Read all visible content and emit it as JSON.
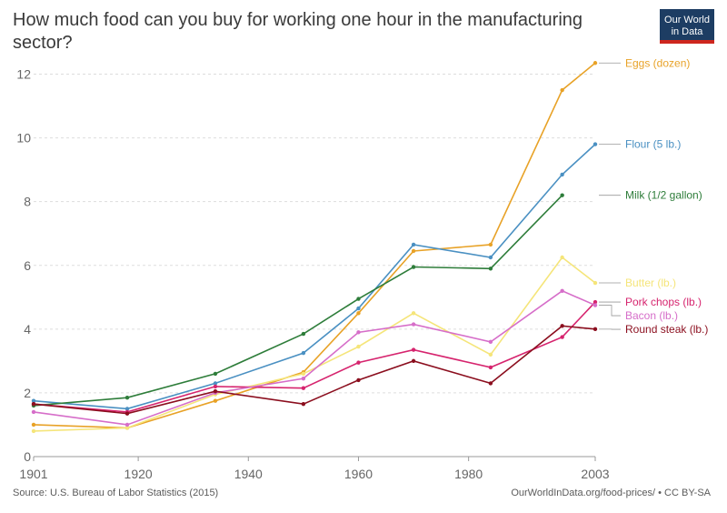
{
  "header": {
    "title": "How much food can you buy for working one hour in the manufacturing sector?",
    "logo_line1": "Our World",
    "logo_line2": "in Data"
  },
  "footer": {
    "source": "Source: U.S. Bureau of Labor Statistics (2015)",
    "credit": "OurWorldInData.org/food-prices/ • CC BY-SA"
  },
  "chart_data": {
    "type": "line",
    "title": "How much food can you buy for working one hour in the manufacturing sector?",
    "xlabel": "",
    "ylabel": "",
    "xlim": [
      1901,
      2003
    ],
    "ylim": [
      0,
      12.5
    ],
    "x_ticks": [
      1901,
      1920,
      1940,
      1960,
      1980,
      2003
    ],
    "y_ticks": [
      0,
      2,
      4,
      6,
      8,
      10,
      12
    ],
    "grid": "horizontal dashed",
    "legend": "right, labels at line ends",
    "x": [
      1901,
      1918,
      1934,
      1950,
      1960,
      1970,
      1984,
      1997,
      2003
    ],
    "series": [
      {
        "name": "Eggs (dozen)",
        "color": "#e8a227",
        "values": [
          1.0,
          0.9,
          1.75,
          2.65,
          4.5,
          6.45,
          6.65,
          11.5,
          12.35
        ]
      },
      {
        "name": "Flour (5 lb.)",
        "color": "#4a90c2",
        "values": [
          1.75,
          1.5,
          2.3,
          3.25,
          4.65,
          6.65,
          6.25,
          8.85,
          9.8
        ]
      },
      {
        "name": "Milk (1/2 gallon)",
        "color": "#2e7d3a",
        "values": [
          1.6,
          1.85,
          2.6,
          3.85,
          4.95,
          5.95,
          5.9,
          8.2,
          null
        ]
      },
      {
        "name": "Butter (lb.)",
        "color": "#f5e57a",
        "values": [
          0.8,
          0.9,
          1.95,
          2.6,
          3.45,
          4.5,
          3.2,
          6.25,
          5.45
        ]
      },
      {
        "name": "Pork chops (lb.)",
        "color": "#d6246e",
        "values": [
          1.65,
          1.4,
          2.2,
          2.15,
          2.95,
          3.35,
          2.8,
          3.75,
          4.85
        ]
      },
      {
        "name": "Bacon (lb.)",
        "color": "#d66ec9",
        "values": [
          1.4,
          1.0,
          2.0,
          2.45,
          3.9,
          4.15,
          3.6,
          5.2,
          4.75
        ]
      },
      {
        "name": "Round steak (lb.)",
        "color": "#8b0e1e",
        "values": [
          1.65,
          1.35,
          2.05,
          1.65,
          2.4,
          3.0,
          2.3,
          4.1,
          4.0
        ]
      }
    ]
  }
}
